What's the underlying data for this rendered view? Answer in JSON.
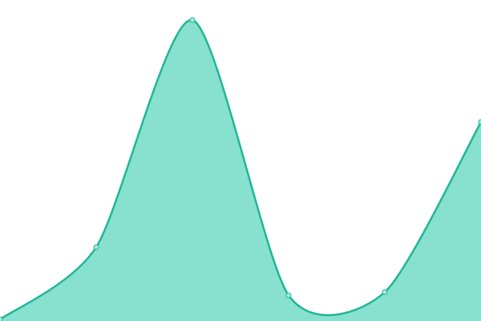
{
  "chart_data": {
    "type": "area",
    "categories": [
      null,
      null,
      null,
      null,
      null,
      null
    ],
    "values": [
      2,
      92,
      375,
      32,
      36,
      248
    ],
    "ylim": [
      0,
      400
    ],
    "color": "#1fb795",
    "fill": "#88e0cf",
    "marker_fill": "#a8eadd"
  }
}
